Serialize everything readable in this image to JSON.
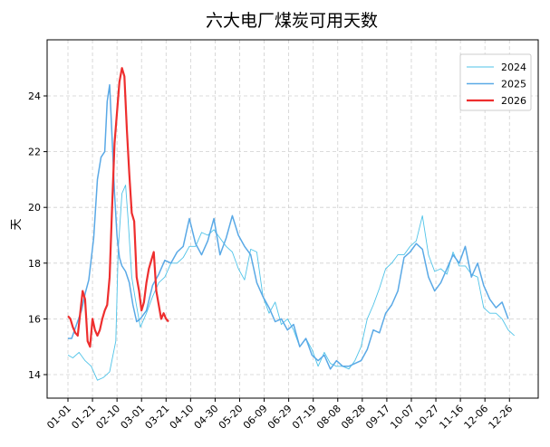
{
  "chart_data": {
    "type": "line",
    "title": "六大电厂煤炭可用天数",
    "xlabel": "",
    "ylabel": "天",
    "ylim": [
      13.2,
      25.7
    ],
    "yticks": [
      14,
      16,
      18,
      20,
      22,
      24
    ],
    "xticks": [
      "01-01",
      "01-21",
      "02-10",
      "03-01",
      "03-21",
      "04-10",
      "04-30",
      "05-20",
      "06-09",
      "06-29",
      "07-19",
      "08-08",
      "08-28",
      "09-17",
      "10-07",
      "10-27",
      "11-16",
      "12-06",
      "12-26"
    ],
    "grid": true,
    "legend_position": "upper right",
    "series": [
      {
        "name": "2024",
        "color": "#4fc3e8",
        "linewidth": 0.9,
        "x_day": [
          1,
          5,
          10,
          15,
          20,
          25,
          30,
          35,
          40,
          42,
          45,
          48,
          50,
          53,
          56,
          60,
          65,
          70,
          75,
          80,
          85,
          90,
          95,
          100,
          105,
          110,
          115,
          120,
          125,
          130,
          135,
          140,
          145,
          150,
          155,
          160,
          165,
          170,
          175,
          180,
          185,
          190,
          195,
          200,
          205,
          210,
          215,
          220,
          225,
          230,
          235,
          240,
          245,
          250,
          255,
          260,
          265,
          270,
          275,
          280,
          285,
          290,
          295,
          300,
          305,
          310,
          315,
          320,
          325,
          330,
          335,
          340,
          345,
          350,
          355,
          360,
          365
        ],
        "values": [
          14.7,
          14.6,
          14.8,
          14.5,
          14.3,
          13.8,
          13.9,
          14.1,
          15.2,
          18.5,
          20.5,
          20.8,
          19.6,
          17.5,
          16.7,
          15.7,
          16.2,
          16.8,
          17.3,
          17.5,
          18.0,
          18.0,
          18.2,
          18.6,
          18.6,
          19.1,
          19.0,
          19.2,
          18.9,
          18.6,
          18.4,
          17.8,
          17.4,
          18.5,
          18.4,
          16.8,
          16.2,
          16.6,
          15.8,
          16.0,
          15.6,
          15.0,
          15.3,
          14.9,
          14.3,
          14.8,
          14.4,
          14.3,
          14.3,
          14.2,
          14.5,
          15.0,
          16.0,
          16.5,
          17.1,
          17.8,
          18.0,
          18.3,
          18.3,
          18.6,
          18.8,
          19.7,
          18.3,
          17.7,
          17.8,
          17.6,
          18.4,
          17.9,
          17.9,
          17.6,
          17.5,
          16.4,
          16.2,
          16.2,
          16.0,
          15.6,
          15.4
        ]
      },
      {
        "name": "2025",
        "color": "#5aa9e6",
        "linewidth": 1.5,
        "x_day": [
          1,
          4,
          8,
          12,
          15,
          18,
          22,
          25,
          28,
          31,
          33,
          35,
          37,
          39,
          41,
          43,
          45,
          48,
          51,
          54,
          57,
          60,
          65,
          70,
          75,
          80,
          85,
          90,
          95,
          100,
          105,
          110,
          115,
          120,
          125,
          130,
          135,
          140,
          145,
          150,
          155,
          160,
          165,
          170,
          175,
          180,
          185,
          190,
          195,
          200,
          205,
          210,
          215,
          220,
          225,
          230,
          235,
          240,
          245,
          250,
          255,
          260,
          265,
          270,
          275,
          280,
          285,
          290,
          295,
          300,
          305,
          310,
          315,
          320,
          325,
          330,
          335,
          340,
          345,
          350,
          355,
          360
        ],
        "values": [
          15.3,
          15.3,
          15.8,
          16.3,
          16.9,
          17.4,
          18.9,
          21.0,
          21.8,
          22.0,
          23.8,
          24.4,
          22.5,
          20.5,
          19.0,
          18.2,
          17.9,
          17.7,
          17.3,
          16.5,
          15.9,
          16.0,
          16.3,
          17.2,
          17.6,
          18.1,
          18.0,
          18.4,
          18.6,
          19.6,
          18.7,
          18.3,
          18.8,
          19.6,
          18.3,
          18.9,
          19.7,
          19.0,
          18.6,
          18.3,
          17.3,
          16.8,
          16.4,
          15.9,
          16.0,
          15.6,
          15.8,
          15.0,
          15.3,
          14.7,
          14.5,
          14.7,
          14.2,
          14.5,
          14.3,
          14.3,
          14.4,
          14.5,
          14.9,
          15.6,
          15.5,
          16.2,
          16.5,
          17.0,
          18.2,
          18.4,
          18.7,
          18.5,
          17.5,
          17.0,
          17.3,
          17.8,
          18.3,
          18.0,
          18.6,
          17.5,
          18.0,
          17.2,
          16.7,
          16.4,
          16.6,
          16.0
        ]
      },
      {
        "name": "2026",
        "color": "#ee2e2e",
        "linewidth": 2.2,
        "x_day": [
          1,
          3,
          5,
          7,
          9,
          11,
          13,
          15,
          17,
          19,
          21,
          23,
          25,
          27,
          29,
          31,
          33,
          35,
          37,
          39,
          41,
          43,
          45,
          47,
          49,
          51,
          53,
          55,
          57,
          59,
          61,
          63,
          65,
          67,
          69,
          71,
          73,
          75,
          77,
          79,
          81,
          83
        ],
        "values": [
          16.1,
          16.0,
          15.7,
          15.5,
          15.4,
          16.2,
          17.0,
          16.7,
          15.2,
          15.0,
          16.0,
          15.6,
          15.4,
          15.6,
          16.0,
          16.3,
          16.5,
          17.5,
          20.0,
          22.3,
          23.4,
          24.5,
          25.0,
          24.7,
          22.8,
          21.2,
          19.8,
          19.5,
          17.5,
          17.0,
          16.3,
          16.6,
          17.3,
          17.8,
          18.1,
          18.4,
          17.0,
          16.5,
          16.0,
          16.2,
          16.0,
          15.9
        ]
      }
    ]
  },
  "legend": {
    "items": [
      "2024",
      "2025",
      "2026"
    ]
  }
}
